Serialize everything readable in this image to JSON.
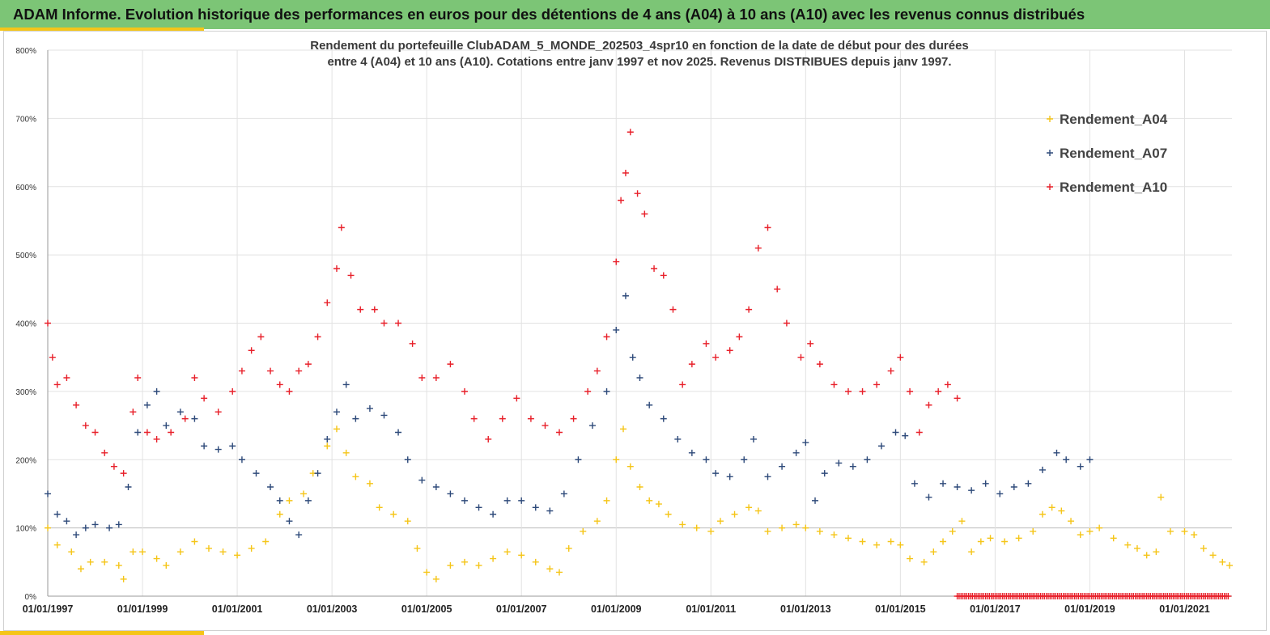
{
  "header": {
    "title": "ADAM Informe. Evolution historique des performances en euros pour des détentions de 4 ans (A04) à 10 ans (A10) avec les revenus connus distribués"
  },
  "chart_data": {
    "type": "scatter",
    "title_line1": "Rendement du portefeuille ClubADAM_5_MONDE_202503_4spr10  en fonction de la date de début pour des durées",
    "title_line2": "entre 4 (A04) et 10 ans (A10). Cotations entre janv 1997 et nov 2025. Revenus DISTRIBUES depuis janv 1997.",
    "ylim": [
      0,
      800
    ],
    "y_ticks": [
      0,
      100,
      200,
      300,
      400,
      500,
      600,
      700,
      800
    ],
    "y_tick_labels": [
      "0%",
      "100%",
      "200%",
      "300%",
      "400%",
      "500%",
      "600%",
      "700%",
      "800%"
    ],
    "xlim": [
      1997.0,
      2022.0
    ],
    "x_ticks": [
      1997,
      1999,
      2001,
      2003,
      2005,
      2007,
      2009,
      2011,
      2013,
      2015,
      2017,
      2019,
      2021
    ],
    "x_tick_labels": [
      "01/01/1997",
      "01/01/1999",
      "01/01/2001",
      "01/01/2003",
      "01/01/2005",
      "01/01/2007",
      "01/01/2009",
      "01/01/2011",
      "01/01/2013",
      "01/01/2015",
      "01/01/2017",
      "01/01/2019",
      "01/01/2021"
    ],
    "grid": true,
    "legend_position": "top-right",
    "series": [
      {
        "name": "Rendement_A04",
        "color": "#f5c518",
        "marker": "plus",
        "points": [
          [
            1997.0,
            100
          ],
          [
            1997.2,
            75
          ],
          [
            1997.5,
            65
          ],
          [
            1997.7,
            40
          ],
          [
            1997.9,
            50
          ],
          [
            1998.2,
            50
          ],
          [
            1998.5,
            45
          ],
          [
            1998.6,
            25
          ],
          [
            1998.8,
            65
          ],
          [
            1999.0,
            65
          ],
          [
            1999.3,
            55
          ],
          [
            1999.5,
            45
          ],
          [
            1999.8,
            65
          ],
          [
            2000.1,
            80
          ],
          [
            2000.4,
            70
          ],
          [
            2000.7,
            65
          ],
          [
            2001.0,
            60
          ],
          [
            2001.3,
            70
          ],
          [
            2001.6,
            80
          ],
          [
            2001.9,
            120
          ],
          [
            2002.1,
            140
          ],
          [
            2002.4,
            150
          ],
          [
            2002.6,
            180
          ],
          [
            2002.9,
            220
          ],
          [
            2003.1,
            245
          ],
          [
            2003.3,
            210
          ],
          [
            2003.5,
            175
          ],
          [
            2003.8,
            165
          ],
          [
            2004.0,
            130
          ],
          [
            2004.3,
            120
          ],
          [
            2004.6,
            110
          ],
          [
            2004.8,
            70
          ],
          [
            2005.0,
            35
          ],
          [
            2005.2,
            25
          ],
          [
            2005.5,
            45
          ],
          [
            2005.8,
            50
          ],
          [
            2006.1,
            45
          ],
          [
            2006.4,
            55
          ],
          [
            2006.7,
            65
          ],
          [
            2007.0,
            60
          ],
          [
            2007.3,
            50
          ],
          [
            2007.6,
            40
          ],
          [
            2007.8,
            35
          ],
          [
            2008.0,
            70
          ],
          [
            2008.3,
            95
          ],
          [
            2008.6,
            110
          ],
          [
            2008.8,
            140
          ],
          [
            2009.0,
            200
          ],
          [
            2009.15,
            245
          ],
          [
            2009.3,
            190
          ],
          [
            2009.5,
            160
          ],
          [
            2009.7,
            140
          ],
          [
            2009.9,
            135
          ],
          [
            2010.1,
            120
          ],
          [
            2010.4,
            105
          ],
          [
            2010.7,
            100
          ],
          [
            2011.0,
            95
          ],
          [
            2011.2,
            110
          ],
          [
            2011.5,
            120
          ],
          [
            2011.8,
            130
          ],
          [
            2012.0,
            125
          ],
          [
            2012.2,
            95
          ],
          [
            2012.5,
            100
          ],
          [
            2012.8,
            105
          ],
          [
            2013.0,
            100
          ],
          [
            2013.3,
            95
          ],
          [
            2013.6,
            90
          ],
          [
            2013.9,
            85
          ],
          [
            2014.2,
            80
          ],
          [
            2014.5,
            75
          ],
          [
            2014.8,
            80
          ],
          [
            2015.0,
            75
          ],
          [
            2015.2,
            55
          ],
          [
            2015.5,
            50
          ],
          [
            2015.7,
            65
          ],
          [
            2015.9,
            80
          ],
          [
            2016.1,
            95
          ],
          [
            2016.3,
            110
          ],
          [
            2016.5,
            65
          ],
          [
            2016.7,
            80
          ],
          [
            2016.9,
            85
          ],
          [
            2017.2,
            80
          ],
          [
            2017.5,
            85
          ],
          [
            2017.8,
            95
          ],
          [
            2018.0,
            120
          ],
          [
            2018.2,
            130
          ],
          [
            2018.4,
            125
          ],
          [
            2018.6,
            110
          ],
          [
            2018.8,
            90
          ],
          [
            2019.0,
            95
          ],
          [
            2019.2,
            100
          ],
          [
            2019.5,
            85
          ],
          [
            2019.8,
            75
          ],
          [
            2020.0,
            70
          ],
          [
            2020.2,
            60
          ],
          [
            2020.4,
            65
          ],
          [
            2020.5,
            145
          ],
          [
            2020.7,
            95
          ],
          [
            2021.0,
            95
          ],
          [
            2021.2,
            90
          ],
          [
            2021.4,
            70
          ],
          [
            2021.6,
            60
          ],
          [
            2021.8,
            50
          ],
          [
            2021.95,
            45
          ]
        ]
      },
      {
        "name": "Rendement_A07",
        "color": "#2e4a7a",
        "marker": "plus",
        "points": [
          [
            1997.0,
            150
          ],
          [
            1997.2,
            120
          ],
          [
            1997.4,
            110
          ],
          [
            1997.6,
            90
          ],
          [
            1997.8,
            100
          ],
          [
            1998.0,
            105
          ],
          [
            1998.3,
            100
          ],
          [
            1998.5,
            105
          ],
          [
            1998.7,
            160
          ],
          [
            1998.9,
            240
          ],
          [
            1999.1,
            280
          ],
          [
            1999.3,
            300
          ],
          [
            1999.5,
            250
          ],
          [
            1999.8,
            270
          ],
          [
            2000.1,
            260
          ],
          [
            2000.3,
            220
          ],
          [
            2000.6,
            215
          ],
          [
            2000.9,
            220
          ],
          [
            2001.1,
            200
          ],
          [
            2001.4,
            180
          ],
          [
            2001.7,
            160
          ],
          [
            2001.9,
            140
          ],
          [
            2002.1,
            110
          ],
          [
            2002.3,
            90
          ],
          [
            2002.5,
            140
          ],
          [
            2002.7,
            180
          ],
          [
            2002.9,
            230
          ],
          [
            2003.1,
            270
          ],
          [
            2003.3,
            310
          ],
          [
            2003.5,
            260
          ],
          [
            2003.8,
            275
          ],
          [
            2004.1,
            265
          ],
          [
            2004.4,
            240
          ],
          [
            2004.6,
            200
          ],
          [
            2004.9,
            170
          ],
          [
            2005.2,
            160
          ],
          [
            2005.5,
            150
          ],
          [
            2005.8,
            140
          ],
          [
            2006.1,
            130
          ],
          [
            2006.4,
            120
          ],
          [
            2006.7,
            140
          ],
          [
            2007.0,
            140
          ],
          [
            2007.3,
            130
          ],
          [
            2007.6,
            125
          ],
          [
            2007.9,
            150
          ],
          [
            2008.2,
            200
          ],
          [
            2008.5,
            250
          ],
          [
            2008.8,
            300
          ],
          [
            2009.0,
            390
          ],
          [
            2009.2,
            440
          ],
          [
            2009.35,
            350
          ],
          [
            2009.5,
            320
          ],
          [
            2009.7,
            280
          ],
          [
            2010.0,
            260
          ],
          [
            2010.3,
            230
          ],
          [
            2010.6,
            210
          ],
          [
            2010.9,
            200
          ],
          [
            2011.1,
            180
          ],
          [
            2011.4,
            175
          ],
          [
            2011.7,
            200
          ],
          [
            2011.9,
            230
          ],
          [
            2012.2,
            175
          ],
          [
            2012.5,
            190
          ],
          [
            2012.8,
            210
          ],
          [
            2013.0,
            225
          ],
          [
            2013.2,
            140
          ],
          [
            2013.4,
            180
          ],
          [
            2013.7,
            195
          ],
          [
            2014.0,
            190
          ],
          [
            2014.3,
            200
          ],
          [
            2014.6,
            220
          ],
          [
            2014.9,
            240
          ],
          [
            2015.1,
            235
          ],
          [
            2015.3,
            165
          ],
          [
            2015.6,
            145
          ],
          [
            2015.9,
            165
          ],
          [
            2016.2,
            160
          ],
          [
            2016.5,
            155
          ],
          [
            2016.8,
            165
          ],
          [
            2017.1,
            150
          ],
          [
            2017.4,
            160
          ],
          [
            2017.7,
            165
          ],
          [
            2018.0,
            185
          ],
          [
            2018.3,
            210
          ],
          [
            2018.5,
            200
          ],
          [
            2018.8,
            190
          ],
          [
            2019.0,
            200
          ]
        ]
      },
      {
        "name": "Rendement_A10",
        "color": "#e8202a",
        "marker": "plus",
        "points": [
          [
            1997.0,
            400
          ],
          [
            1997.1,
            350
          ],
          [
            1997.2,
            310
          ],
          [
            1997.4,
            320
          ],
          [
            1997.6,
            280
          ],
          [
            1997.8,
            250
          ],
          [
            1998.0,
            240
          ],
          [
            1998.2,
            210
          ],
          [
            1998.4,
            190
          ],
          [
            1998.6,
            180
          ],
          [
            1998.8,
            270
          ],
          [
            1998.9,
            320
          ],
          [
            1999.1,
            240
          ],
          [
            1999.3,
            230
          ],
          [
            1999.6,
            240
          ],
          [
            1999.9,
            260
          ],
          [
            2000.1,
            320
          ],
          [
            2000.3,
            290
          ],
          [
            2000.6,
            270
          ],
          [
            2000.9,
            300
          ],
          [
            2001.1,
            330
          ],
          [
            2001.3,
            360
          ],
          [
            2001.5,
            380
          ],
          [
            2001.7,
            330
          ],
          [
            2001.9,
            310
          ],
          [
            2002.1,
            300
          ],
          [
            2002.3,
            330
          ],
          [
            2002.5,
            340
          ],
          [
            2002.7,
            380
          ],
          [
            2002.9,
            430
          ],
          [
            2003.1,
            480
          ],
          [
            2003.2,
            540
          ],
          [
            2003.4,
            470
          ],
          [
            2003.6,
            420
          ],
          [
            2003.9,
            420
          ],
          [
            2004.1,
            400
          ],
          [
            2004.4,
            400
          ],
          [
            2004.7,
            370
          ],
          [
            2004.9,
            320
          ],
          [
            2005.2,
            320
          ],
          [
            2005.5,
            340
          ],
          [
            2005.8,
            300
          ],
          [
            2006.0,
            260
          ],
          [
            2006.3,
            230
          ],
          [
            2006.6,
            260
          ],
          [
            2006.9,
            290
          ],
          [
            2007.2,
            260
          ],
          [
            2007.5,
            250
          ],
          [
            2007.8,
            240
          ],
          [
            2008.1,
            260
          ],
          [
            2008.4,
            300
          ],
          [
            2008.6,
            330
          ],
          [
            2008.8,
            380
          ],
          [
            2009.0,
            490
          ],
          [
            2009.1,
            580
          ],
          [
            2009.2,
            620
          ],
          [
            2009.3,
            680
          ],
          [
            2009.45,
            590
          ],
          [
            2009.6,
            560
          ],
          [
            2009.8,
            480
          ],
          [
            2010.0,
            470
          ],
          [
            2010.2,
            420
          ],
          [
            2010.4,
            310
          ],
          [
            2010.6,
            340
          ],
          [
            2010.9,
            370
          ],
          [
            2011.1,
            350
          ],
          [
            2011.4,
            360
          ],
          [
            2011.6,
            380
          ],
          [
            2011.8,
            420
          ],
          [
            2012.0,
            510
          ],
          [
            2012.2,
            540
          ],
          [
            2012.4,
            450
          ],
          [
            2012.6,
            400
          ],
          [
            2012.9,
            350
          ],
          [
            2013.1,
            370
          ],
          [
            2013.3,
            340
          ],
          [
            2013.6,
            310
          ],
          [
            2013.9,
            300
          ],
          [
            2014.2,
            300
          ],
          [
            2014.5,
            310
          ],
          [
            2014.8,
            330
          ],
          [
            2015.0,
            350
          ],
          [
            2015.2,
            300
          ],
          [
            2015.4,
            240
          ],
          [
            2015.6,
            280
          ],
          [
            2015.8,
            300
          ],
          [
            2016.0,
            310
          ],
          [
            2016.2,
            290
          ]
        ]
      }
    ],
    "zero_band": {
      "x_from": 2016.2,
      "x_to": 2021.95,
      "y": 0,
      "color": "#e8202a"
    }
  }
}
